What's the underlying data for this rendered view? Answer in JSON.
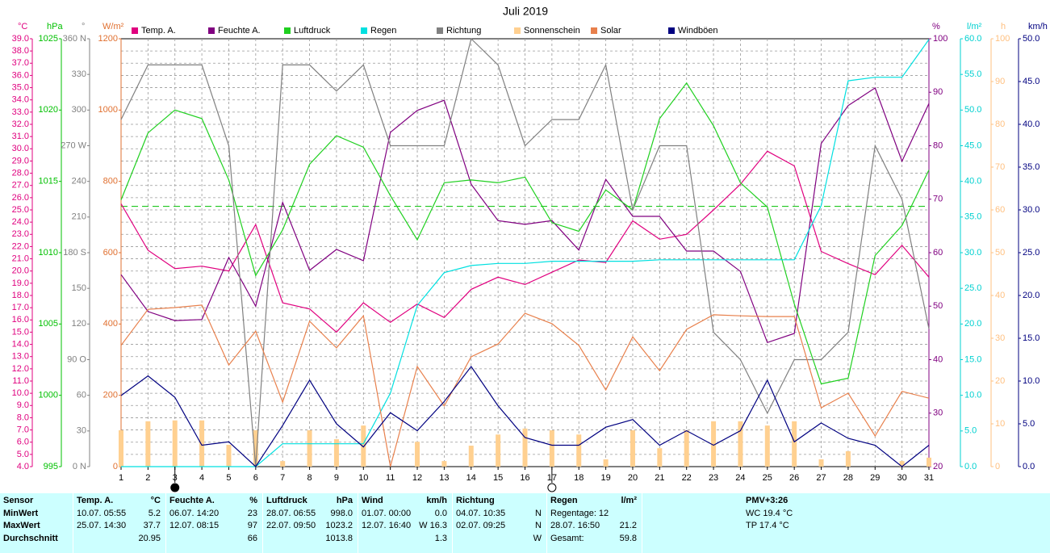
{
  "chart_data": {
    "type": "line",
    "title": "Juli 2019",
    "x": [
      1,
      2,
      3,
      4,
      5,
      6,
      7,
      8,
      9,
      10,
      11,
      12,
      13,
      14,
      15,
      16,
      17,
      18,
      19,
      20,
      21,
      22,
      23,
      24,
      25,
      26,
      27,
      28,
      29,
      30,
      31
    ],
    "xlim": [
      1,
      31
    ],
    "grid": true,
    "axes": [
      {
        "id": "temp",
        "side": "left",
        "unit": "°C",
        "color": "#e0007f",
        "lim": [
          4,
          39
        ],
        "grid": true,
        "ticks": [
          {
            "value": 4,
            "label": "4.0"
          },
          {
            "value": 5,
            "label": "5.0"
          },
          {
            "value": 6,
            "label": "6.0"
          },
          {
            "value": 7,
            "label": "7.0"
          },
          {
            "value": 8,
            "label": "8.0"
          },
          {
            "value": 9,
            "label": "9.0"
          },
          {
            "value": 10,
            "label": "10.0"
          },
          {
            "value": 11,
            "label": "11.0"
          },
          {
            "value": 12,
            "label": "12.0"
          },
          {
            "value": 13,
            "label": "13.0"
          },
          {
            "value": 14,
            "label": "14.0"
          },
          {
            "value": 15,
            "label": "15.0"
          },
          {
            "value": 16,
            "label": "16.0"
          },
          {
            "value": 17,
            "label": "17.0"
          },
          {
            "value": 18,
            "label": "18.0"
          },
          {
            "value": 19,
            "label": "19.0"
          },
          {
            "value": 20,
            "label": "20.0"
          },
          {
            "value": 21,
            "label": "21.0"
          },
          {
            "value": 22,
            "label": "22.0"
          },
          {
            "value": 23,
            "label": "23.0"
          },
          {
            "value": 24,
            "label": "24.0"
          },
          {
            "value": 25,
            "label": "25.0"
          },
          {
            "value": 26,
            "label": "26.0"
          },
          {
            "value": 27,
            "label": "27.0"
          },
          {
            "value": 28,
            "label": "28.0"
          },
          {
            "value": 29,
            "label": "29.0"
          },
          {
            "value": 30,
            "label": "30.0"
          },
          {
            "value": 31,
            "label": "31.0"
          },
          {
            "value": 32,
            "label": "32.0"
          },
          {
            "value": 33,
            "label": "33.0"
          },
          {
            "value": 34,
            "label": "34.0"
          },
          {
            "value": 35,
            "label": "35.0"
          },
          {
            "value": 36,
            "label": "36.0"
          },
          {
            "value": 37,
            "label": "37.0"
          },
          {
            "value": 38,
            "label": "38.0"
          },
          {
            "value": 39,
            "label": "39.0"
          }
        ]
      },
      {
        "id": "pressure",
        "side": "left",
        "unit": "hPa",
        "color": "#00c000",
        "lim": [
          995,
          1025
        ],
        "ticks": [
          995,
          1000,
          1005,
          1010,
          1015,
          1020,
          1025
        ]
      },
      {
        "id": "direction",
        "side": "left",
        "unit": "°",
        "color": "#808080",
        "lim": [
          0,
          360
        ],
        "ticks": [
          {
            "value": 0,
            "label": "0 N"
          },
          30,
          60,
          {
            "value": 90,
            "label": "90 O"
          },
          120,
          150,
          {
            "value": 180,
            "label": "180 S"
          },
          210,
          240,
          {
            "value": 270,
            "label": "270 W"
          },
          300,
          330,
          {
            "value": 360,
            "label": "360 N"
          }
        ]
      },
      {
        "id": "solar",
        "side": "left",
        "unit": "W/m²",
        "color": "#e07030",
        "lim": [
          0,
          1200
        ],
        "ticks": [
          0,
          200,
          400,
          600,
          800,
          1000,
          1200
        ]
      },
      {
        "id": "humidity",
        "side": "right",
        "unit": "%",
        "color": "#800080",
        "lim": [
          20,
          100
        ],
        "ticks": [
          20,
          30,
          40,
          50,
          60,
          70,
          80,
          90,
          100
        ]
      },
      {
        "id": "rain",
        "side": "right",
        "unit": "l/m²",
        "color": "#00d0d0",
        "lim": [
          0,
          60
        ],
        "ticks": [
          {
            "value": 0,
            "label": "0.0"
          },
          {
            "value": 5,
            "label": "5.0"
          },
          {
            "value": 10,
            "label": "10.0"
          },
          {
            "value": 15,
            "label": "15.0"
          },
          {
            "value": 20,
            "label": "20.0"
          },
          {
            "value": 25,
            "label": "25.0"
          },
          {
            "value": 30,
            "label": "30.0"
          },
          {
            "value": 35,
            "label": "35.0"
          },
          {
            "value": 40,
            "label": "40.0"
          },
          {
            "value": 45,
            "label": "45.0"
          },
          {
            "value": 50,
            "label": "50.0"
          },
          {
            "value": 55,
            "label": "55.0"
          },
          {
            "value": 60,
            "label": "60.0"
          }
        ]
      },
      {
        "id": "sunshine",
        "side": "right",
        "unit": "h",
        "color": "#ffc080",
        "lim": [
          0,
          100
        ],
        "ticks": [
          0,
          10,
          20,
          30,
          40,
          50,
          60,
          70,
          80,
          90,
          100
        ]
      },
      {
        "id": "wind",
        "side": "right",
        "unit": "km/h",
        "color": "#000080",
        "lim": [
          0,
          50
        ],
        "ticks": [
          {
            "value": 0,
            "label": "0.0"
          },
          {
            "value": 5,
            "label": "5.0"
          },
          {
            "value": 10,
            "label": "10.0"
          },
          {
            "value": 15,
            "label": "15.0"
          },
          {
            "value": 20,
            "label": "20.0"
          },
          {
            "value": 25,
            "label": "25.0"
          },
          {
            "value": 30,
            "label": "30.0"
          },
          {
            "value": 35,
            "label": "35.0"
          },
          {
            "value": 40,
            "label": "40.0"
          },
          {
            "value": 45,
            "label": "45.0"
          },
          {
            "value": 50,
            "label": "50.0"
          }
        ]
      }
    ],
    "reference_line": {
      "axis": "pressure",
      "value": 1013.25,
      "color": "#00c000"
    },
    "moon_phases": [
      {
        "day": 3,
        "filled": true
      },
      {
        "day": 17,
        "filled": false
      }
    ],
    "series": [
      {
        "name": "Temp. A.",
        "color": "#e0007f",
        "axis": "temp",
        "type": "line",
        "values": [
          25.5,
          21.7,
          20.2,
          20.4,
          20.0,
          23.8,
          17.4,
          16.9,
          15.0,
          17.4,
          15.8,
          17.3,
          16.2,
          18.5,
          19.5,
          18.9,
          19.9,
          20.9,
          20.7,
          24.1,
          22.6,
          23.0,
          25.0,
          27.1,
          29.8,
          28.6,
          21.6,
          20.6,
          19.7,
          22.1,
          19.5
        ]
      },
      {
        "name": "Feuchte A.",
        "color": "#800080",
        "axis": "humidity",
        "type": "line",
        "values": [
          55.9,
          49.0,
          47.3,
          47.5,
          59.1,
          50.0,
          69.4,
          56.7,
          60.6,
          58.5,
          82.5,
          86.6,
          88.5,
          72.8,
          66.0,
          65.3,
          66.0,
          60.5,
          73.7,
          66.8,
          66.8,
          60.3,
          60.3,
          56.5,
          43.2,
          44.9,
          80.4,
          87.5,
          90.8,
          77.1,
          87.9
        ]
      },
      {
        "name": "Luftdruck",
        "color": "#20d020",
        "axis": "pressure",
        "type": "line",
        "values": [
          1013.7,
          1018.4,
          1020.0,
          1019.4,
          1015.1,
          1008.4,
          1011.6,
          1016.2,
          1018.2,
          1017.4,
          1014.0,
          1010.9,
          1014.9,
          1015.1,
          1014.9,
          1015.3,
          1012.1,
          1011.5,
          1014.4,
          1013.0,
          1019.4,
          1021.9,
          1018.9,
          1014.9,
          1013.2,
          1006.4,
          1000.8,
          1001.2,
          1009.8,
          1011.9,
          1015.8
        ]
      },
      {
        "name": "Regen",
        "color": "#00e0e0",
        "axis": "rain",
        "type": "line",
        "values": [
          0,
          0,
          0,
          0,
          0,
          0,
          3.2,
          3.2,
          3.2,
          3.2,
          10.3,
          22.6,
          27.2,
          28.2,
          28.5,
          28.5,
          28.8,
          28.8,
          28.8,
          28.8,
          29.0,
          29.0,
          29.0,
          29.0,
          29.0,
          29.0,
          36.6,
          54.1,
          54.6,
          54.6,
          59.9
        ]
      },
      {
        "name": "Richtung",
        "color": "#808080",
        "axis": "direction",
        "type": "line",
        "values": [
          292,
          338,
          338,
          338,
          270,
          0,
          338,
          338,
          316,
          338,
          270,
          270,
          270,
          360,
          338,
          270,
          292,
          292,
          338,
          216,
          270,
          270,
          113,
          90,
          45,
          90,
          90,
          113,
          270,
          225,
          116
        ]
      },
      {
        "name": "Sonnenschein",
        "color": "#ffd090",
        "axis": "sunshine",
        "type": "bar",
        "values": [
          8.5,
          10.6,
          10.8,
          10.8,
          5.1,
          8.5,
          1.3,
          8.5,
          6.4,
          9.6,
          0,
          5.8,
          1.3,
          4.9,
          7.5,
          8.9,
          8.5,
          7.5,
          1.7,
          8.5,
          4.3,
          8.5,
          10.6,
          10.6,
          9.6,
          10.6,
          1.7,
          3.6,
          0,
          1.3,
          2.1
        ]
      },
      {
        "name": "Solar",
        "color": "#e8804c",
        "axis": "solar",
        "type": "line",
        "values": [
          340,
          441,
          446,
          453,
          285,
          380,
          181,
          408,
          333,
          423,
          0,
          281,
          170,
          308,
          344,
          430,
          401,
          340,
          215,
          364,
          269,
          385,
          426,
          423,
          421,
          421,
          165,
          206,
          86,
          211,
          192
        ]
      },
      {
        "name": "Windböen",
        "color": "#000080",
        "axis": "wind",
        "type": "line",
        "values": [
          8.3,
          10.6,
          8.1,
          2.5,
          2.9,
          0,
          4.8,
          10.1,
          5.0,
          2.3,
          6.3,
          4.2,
          7.6,
          11.7,
          7.1,
          3.4,
          2.5,
          2.5,
          4.6,
          5.5,
          2.5,
          4.2,
          2.5,
          4.2,
          10.1,
          2.9,
          5.1,
          3.3,
          2.5,
          0,
          2.5
        ]
      }
    ]
  },
  "table": {
    "corner": "Sensor",
    "columns": [
      {
        "title": "Temp. A.",
        "unit": "°C"
      },
      {
        "title": "Feuchte A.",
        "unit": "%"
      },
      {
        "title": "Luftdruck",
        "unit": "hPa"
      },
      {
        "title": "Wind",
        "unit": "km/h"
      },
      {
        "title": "Richtung"
      },
      {
        "title": "Regen",
        "unit": "l/m²"
      },
      {
        "title": "PMV+3:26"
      }
    ],
    "rows": [
      {
        "label": "MinWert",
        "cells": [
          {
            "left": "10.07. 05:55",
            "right": "5.2"
          },
          {
            "left": "06.07. 14:20",
            "right": "23"
          },
          {
            "left": "28.07. 06:55",
            "right": "998.0"
          },
          {
            "left": "01.07. 00:00",
            "right": "0.0"
          },
          {
            "left": "04.07. 10:35",
            "right": "N"
          },
          {
            "left": "Regentage: 12"
          },
          {
            "left": "WC 19.4 °C"
          }
        ]
      },
      {
        "label": "MaxWert",
        "cells": [
          {
            "left": "25.07. 14:30",
            "right": "37.7"
          },
          {
            "left": "12.07. 08:15",
            "right": "97"
          },
          {
            "left": "22.07. 09:50",
            "right": "1023.2"
          },
          {
            "left": "12.07. 16:40",
            "right": "W 16.3"
          },
          {
            "left": "02.07. 09:25",
            "right": "N"
          },
          {
            "left": "28.07. 16:50",
            "right": "21.2"
          },
          {
            "left": "TP 17.4 °C"
          }
        ]
      },
      {
        "label": "Durchschnitt",
        "cells": [
          {
            "right": "20.95"
          },
          {
            "right": "66"
          },
          {
            "right": "1013.8"
          },
          {
            "right": "1.3"
          },
          {
            "right": "W"
          },
          {
            "left": "Gesamt:",
            "right": "59.8"
          }
        ]
      }
    ]
  }
}
